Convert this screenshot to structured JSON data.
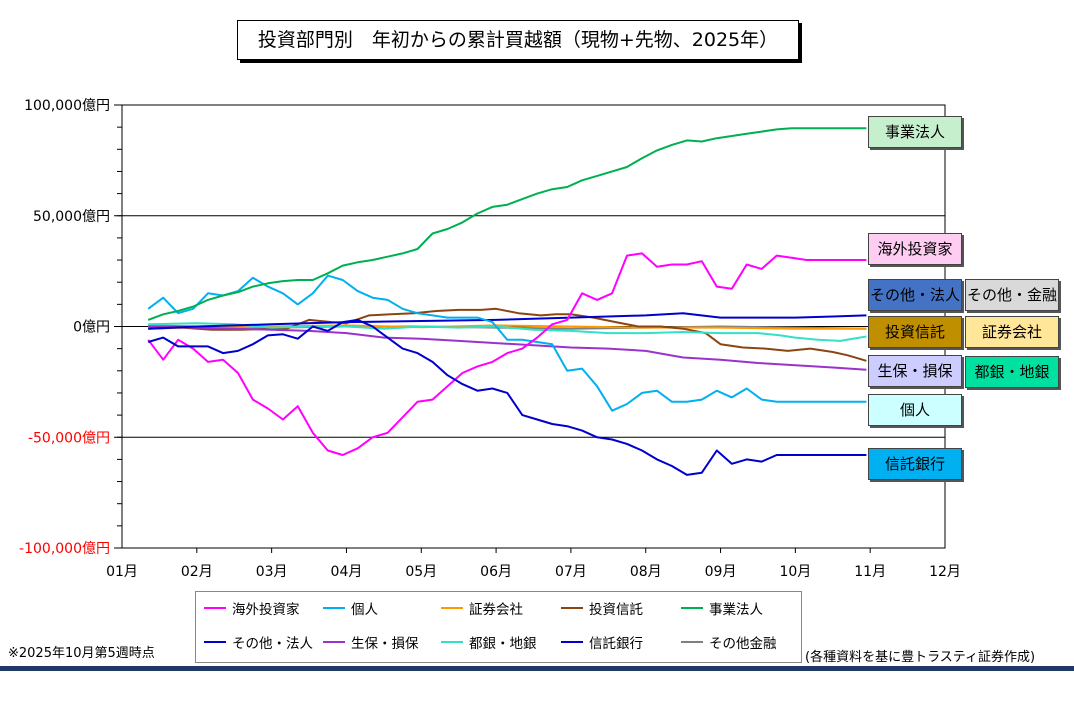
{
  "title": "投資部門別　年初からの累計買越額（現物+先物、2025年）",
  "note": "※2025年10月第5週時点",
  "source": "(各種資料を基に豊トラスティ証券作成)",
  "colors": {
    "negative_tick": "#ff0000",
    "axis": "#000000",
    "zero_line": "#000000"
  },
  "chart_data": {
    "type": "line",
    "ylim": [
      -100000,
      100000
    ],
    "y_ticks": [
      {
        "value": 100000,
        "label": "100,000億円",
        "color": "#000000"
      },
      {
        "value": 50000,
        "label": "50,000億円",
        "color": "#000000"
      },
      {
        "value": 0,
        "label": "0億円",
        "color": "#000000"
      },
      {
        "value": -50000,
        "label": "-50,000億円",
        "color": "#ff0000"
      },
      {
        "value": -100000,
        "label": "-100,000億円",
        "color": "#ff0000"
      }
    ],
    "x_ticks": [
      "01月",
      "02月",
      "03月",
      "04月",
      "05月",
      "06月",
      "07月",
      "08月",
      "09月",
      "10月",
      "11月",
      "12月"
    ],
    "xlim": [
      0,
      11
    ],
    "series": [
      {
        "name": "海外投資家",
        "color": "#ff00ff",
        "x": [
          0.35,
          0.55,
          0.75,
          0.95,
          1.15,
          1.35,
          1.55,
          1.75,
          1.95,
          2.15,
          2.35,
          2.55,
          2.75,
          2.95,
          3.15,
          3.35,
          3.55,
          3.75,
          3.95,
          4.15,
          4.35,
          4.55,
          4.75,
          4.95,
          5.15,
          5.35,
          5.55,
          5.75,
          5.95,
          6.15,
          6.35,
          6.55,
          6.75,
          6.95,
          7.15,
          7.35,
          7.55,
          7.75,
          7.95,
          8.15,
          8.35,
          8.55,
          8.75,
          8.95,
          9.15,
          9.35,
          9.55,
          9.75,
          9.95
        ],
        "y": [
          -6000,
          -15000,
          -6000,
          -10000,
          -16000,
          -15000,
          -21000,
          -33000,
          -37000,
          -42000,
          -36000,
          -48000,
          -56000,
          -58000,
          -55000,
          -50000,
          -48000,
          -41000,
          -34000,
          -33000,
          -27000,
          -21000,
          -18000,
          -16000,
          -12000,
          -10000,
          -5000,
          1000,
          3000,
          15000,
          12000,
          15000,
          32000,
          33000,
          27000,
          28000,
          28000,
          29500,
          18000,
          17000,
          28000,
          26000,
          32000,
          31000,
          30000,
          30000,
          30000,
          30000,
          30000
        ]
      },
      {
        "name": "個人",
        "color": "#00b0f0",
        "x": [
          0.35,
          0.55,
          0.75,
          0.95,
          1.15,
          1.35,
          1.55,
          1.75,
          1.95,
          2.15,
          2.35,
          2.55,
          2.75,
          2.95,
          3.15,
          3.35,
          3.55,
          3.75,
          3.95,
          4.15,
          4.35,
          4.55,
          4.75,
          4.95,
          5.15,
          5.35,
          5.55,
          5.75,
          5.95,
          6.15,
          6.35,
          6.55,
          6.75,
          6.95,
          7.15,
          7.35,
          7.55,
          7.75,
          7.95,
          8.15,
          8.35,
          8.55,
          8.75,
          8.95,
          9.15,
          9.35,
          9.55,
          9.75,
          9.95
        ],
        "y": [
          8000,
          13000,
          6000,
          8000,
          15000,
          14000,
          16000,
          22000,
          18000,
          15000,
          10000,
          15000,
          23000,
          21000,
          16000,
          13000,
          12000,
          8000,
          6000,
          5000,
          4000,
          4000,
          4000,
          2000,
          -6000,
          -6000,
          -7000,
          -8000,
          -20000,
          -19000,
          -27000,
          -38000,
          -35000,
          -30000,
          -29000,
          -34000,
          -34000,
          -33000,
          -29000,
          -32000,
          -28000,
          -33000,
          -34000,
          -34000,
          -34000,
          -34000,
          -34000,
          -34000,
          -34000
        ]
      },
      {
        "name": "証券会社",
        "color": "#ff9900",
        "x": [
          0.35,
          1.0,
          2.0,
          3.0,
          4.0,
          5.0,
          6.0,
          7.0,
          8.0,
          9.0,
          9.95
        ],
        "y": [
          0,
          -500,
          0,
          500,
          -300,
          500,
          0,
          -500,
          -500,
          -1000,
          -1000
        ]
      },
      {
        "name": "投資信託",
        "color": "#8b4513",
        "x": [
          0.35,
          0.8,
          1.2,
          1.6,
          2.0,
          2.2,
          2.5,
          2.8,
          3.0,
          3.3,
          3.6,
          3.9,
          4.2,
          4.5,
          4.8,
          5.0,
          5.3,
          5.6,
          5.8,
          6.0,
          6.3,
          6.6,
          6.9,
          7.2,
          7.5,
          7.8,
          8.0,
          8.3,
          8.6,
          8.9,
          9.2,
          9.5,
          9.7,
          9.95
        ],
        "y": [
          -1000,
          -500,
          -1500,
          -1500,
          -1000,
          -1000,
          3000,
          2000,
          1500,
          5000,
          5500,
          6000,
          7000,
          7500,
          7500,
          8000,
          6000,
          5000,
          5500,
          5500,
          4000,
          2000,
          0,
          0,
          -1000,
          -3000,
          -8000,
          -9500,
          -10000,
          -11000,
          -10000,
          -11500,
          -13000,
          -15500
        ]
      },
      {
        "name": "事業法人",
        "color": "#00b050",
        "x": [
          0.35,
          0.55,
          0.75,
          0.95,
          1.15,
          1.35,
          1.55,
          1.75,
          1.95,
          2.15,
          2.35,
          2.55,
          2.75,
          2.95,
          3.15,
          3.35,
          3.55,
          3.75,
          3.95,
          4.15,
          4.35,
          4.55,
          4.75,
          4.95,
          5.15,
          5.35,
          5.55,
          5.75,
          5.95,
          6.15,
          6.35,
          6.55,
          6.75,
          6.95,
          7.15,
          7.35,
          7.55,
          7.75,
          7.95,
          8.15,
          8.35,
          8.55,
          8.75,
          8.95,
          9.15,
          9.35,
          9.55,
          9.75,
          9.95
        ],
        "y": [
          3000,
          5500,
          7000,
          9000,
          12000,
          14000,
          15500,
          18000,
          19500,
          20500,
          21000,
          21000,
          24000,
          27500,
          29000,
          30000,
          31500,
          33000,
          35000,
          42000,
          44000,
          47000,
          51000,
          54000,
          55000,
          57500,
          60000,
          62000,
          63000,
          66000,
          68000,
          70000,
          72000,
          76000,
          79500,
          82000,
          84000,
          83500,
          85000,
          86000,
          87000,
          88000,
          89000,
          89500,
          89500,
          89500,
          89500,
          89500,
          89500
        ]
      },
      {
        "name": "その他・法人",
        "color": "#0000cd",
        "x": [
          0.35,
          1.0,
          2.0,
          3.0,
          4.0,
          5.0,
          6.0,
          7.0,
          7.5,
          8.0,
          8.5,
          9.0,
          9.5,
          9.95
        ],
        "y": [
          -1000,
          0,
          1000,
          2000,
          2500,
          3000,
          4000,
          5000,
          6000,
          4000,
          4000,
          4000,
          4500,
          5000
        ]
      },
      {
        "name": "生保・損保",
        "color": "#9933cc",
        "x": [
          0.35,
          1.0,
          1.5,
          2.0,
          2.5,
          3.0,
          3.5,
          4.0,
          4.5,
          5.0,
          5.5,
          6.0,
          6.5,
          7.0,
          7.5,
          8.0,
          8.5,
          9.0,
          9.5,
          9.95
        ],
        "y": [
          0,
          -500,
          -1000,
          -1500,
          -2000,
          -3000,
          -5000,
          -5500,
          -6500,
          -7500,
          -8500,
          -9500,
          -10000,
          -11000,
          -14000,
          -15000,
          -16500,
          -17500,
          -18500,
          -19500
        ]
      },
      {
        "name": "都銀・地銀",
        "color": "#33e0c8",
        "x": [
          0.35,
          1.0,
          1.5,
          2.0,
          2.5,
          3.0,
          3.5,
          4.0,
          4.5,
          5.0,
          5.5,
          6.0,
          6.5,
          7.0,
          7.5,
          8.0,
          8.5,
          8.8,
          9.0,
          9.3,
          9.6,
          9.95
        ],
        "y": [
          1000,
          1500,
          1000,
          -500,
          0,
          0,
          -1000,
          0,
          -500,
          0,
          -1500,
          -2000,
          -3000,
          -3000,
          -2500,
          -3000,
          -3000,
          -4000,
          -5000,
          -6000,
          -6500,
          -4500
        ]
      },
      {
        "name": "信託銀行",
        "color": "#0000cd",
        "x": [
          0.35,
          0.55,
          0.75,
          0.95,
          1.15,
          1.35,
          1.55,
          1.75,
          1.95,
          2.15,
          2.35,
          2.55,
          2.75,
          2.95,
          3.15,
          3.35,
          3.55,
          3.75,
          3.95,
          4.15,
          4.35,
          4.55,
          4.75,
          4.95,
          5.15,
          5.35,
          5.55,
          5.75,
          5.95,
          6.15,
          6.35,
          6.55,
          6.75,
          6.95,
          7.15,
          7.35,
          7.55,
          7.75,
          7.95,
          8.15,
          8.35,
          8.55,
          8.75,
          8.95,
          9.15,
          9.35,
          9.55,
          9.75,
          9.95
        ],
        "y": [
          -7000,
          -5000,
          -9000,
          -9000,
          -9000,
          -12000,
          -11000,
          -8000,
          -4000,
          -3500,
          -5500,
          0,
          -2000,
          2000,
          3000,
          0,
          -5000,
          -10000,
          -12000,
          -16000,
          -22000,
          -26000,
          -29000,
          -28000,
          -30000,
          -40000,
          -42000,
          -44000,
          -45000,
          -47000,
          -50000,
          -51000,
          -53000,
          -56000,
          -60000,
          -63000,
          -67000,
          -66000,
          -56000,
          -62000,
          -60000,
          -61000,
          -58000,
          -58000,
          -58000,
          -58000,
          -58000,
          -58000,
          -58000
        ]
      },
      {
        "name": "その他金融",
        "color": "#7f7f7f",
        "x": [
          0.35,
          1.0,
          2.0,
          3.0,
          4.0,
          5.0,
          6.0,
          7.0,
          8.0,
          9.0,
          9.95
        ],
        "y": [
          500,
          0,
          -500,
          0,
          0,
          -500,
          -1000,
          -500,
          0,
          -500,
          -1000
        ]
      }
    ],
    "end_tags": [
      {
        "label": "事業法人",
        "bg": "#c6efce"
      },
      {
        "label": "海外投資家",
        "bg": "#ffccf2"
      },
      {
        "label": "その他・法人",
        "bg": "#4472c4"
      },
      {
        "label": "その他・金融",
        "bg": "#d9d9d9"
      },
      {
        "label": "投資信託",
        "bg": "#bf8f00"
      },
      {
        "label": "証券会社",
        "bg": "#ffe699"
      },
      {
        "label": "生保・損保",
        "bg": "#ccccff"
      },
      {
        "label": "都銀・地銀",
        "bg": "#00e0a0"
      },
      {
        "label": "個人",
        "bg": "#ccffff"
      },
      {
        "label": "信託銀行",
        "bg": "#00b0f0"
      }
    ],
    "legend": [
      {
        "label": "海外投資家",
        "color": "#ff00ff"
      },
      {
        "label": "個人",
        "color": "#00b0f0"
      },
      {
        "label": "証券会社",
        "color": "#ff9900"
      },
      {
        "label": "投資信託",
        "color": "#8b4513"
      },
      {
        "label": "事業法人",
        "color": "#00b050"
      },
      {
        "label": "その他・法人",
        "color": "#0000cd"
      },
      {
        "label": "生保・損保",
        "color": "#9933cc"
      },
      {
        "label": "都銀・地銀",
        "color": "#33e0c8"
      },
      {
        "label": "信託銀行",
        "color": "#0000cd"
      },
      {
        "label": "その他金融",
        "color": "#7f7f7f"
      }
    ]
  }
}
